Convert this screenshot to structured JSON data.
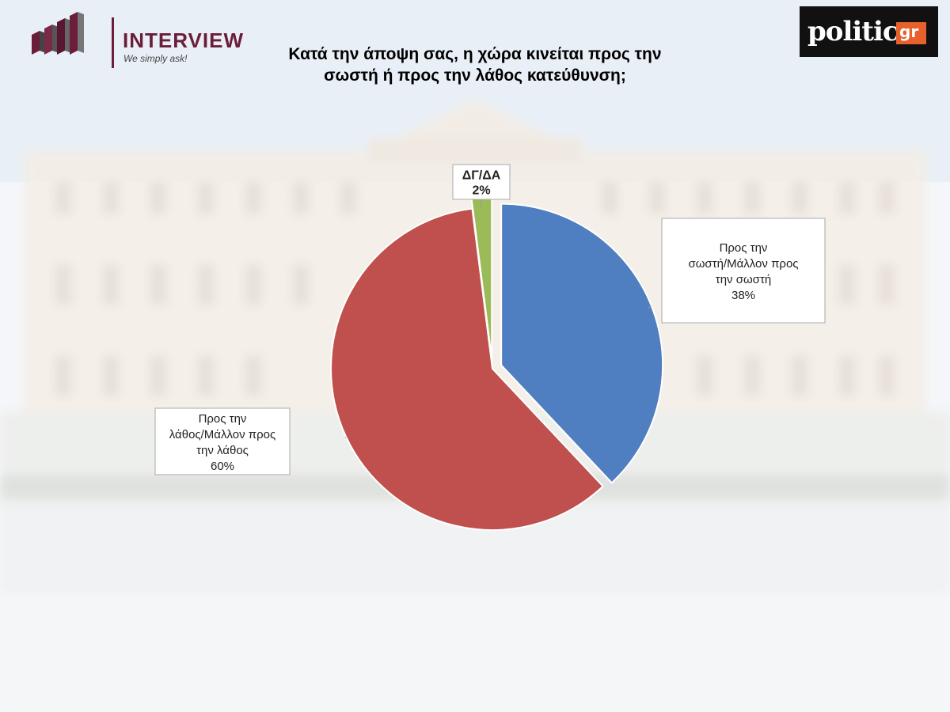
{
  "header": {
    "brand_name": "INTERVIEW",
    "brand_tagline": "We simply ask!",
    "partner_logo": "politic",
    "partner_logo_suffix": "gr"
  },
  "chart_data": {
    "type": "pie",
    "title": "Κατά την άποψη σας, η χώρα κινείται προς την σωστή ή προς την λάθος κατεύθυνση;",
    "slices": [
      {
        "label_lines": [
          "Προς την",
          "σωστή/Μάλλον προς",
          "την σωστή"
        ],
        "value": 38,
        "value_label": "38%",
        "color": "#4f7fc0"
      },
      {
        "label_lines": [
          "Προς την",
          "λάθος/Μάλλον προς",
          "την λάθος"
        ],
        "value": 60,
        "value_label": "60%",
        "color": "#c0504d"
      },
      {
        "label_lines": [
          "ΔΓ/ΔΑ"
        ],
        "value": 2,
        "value_label": "2%",
        "color": "#9bbb59"
      }
    ],
    "start_angle_deg": 0,
    "direction": "clockwise",
    "exploded": true
  }
}
